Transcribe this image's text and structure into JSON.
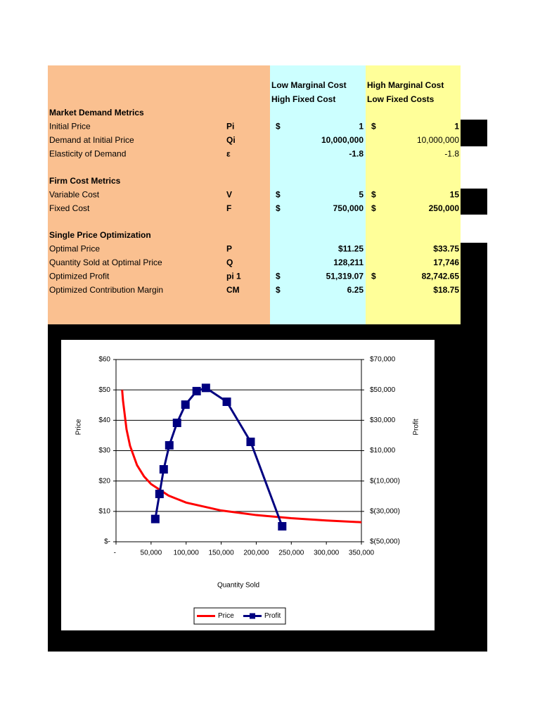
{
  "table": {
    "column_headers": [
      [
        "Low Marginal Cost",
        "High Fixed Cost"
      ],
      [
        "High Marginal Cost",
        "Low Fixed Costs"
      ]
    ],
    "sections": [
      {
        "title": "Market Demand Metrics",
        "rows": [
          {
            "label": "Initial Price",
            "symbol": "Pi",
            "low": {
              "currency": "$",
              "value": "1"
            },
            "high": {
              "currency": "$",
              "value": "1"
            }
          },
          {
            "label": "Demand at Initial Price",
            "symbol": "Qi",
            "low": {
              "value": "10,000,000"
            },
            "high": {
              "value": "10,000,000"
            }
          },
          {
            "label": "Elasticity of Demand",
            "symbol": "ε",
            "low": {
              "value": "-1.8"
            },
            "high": {
              "value": "-1.8"
            }
          }
        ]
      },
      {
        "title": "Firm Cost Metrics",
        "rows": [
          {
            "label": "Variable Cost",
            "symbol": "V",
            "low": {
              "currency": "$",
              "value": "5"
            },
            "high": {
              "currency": "$",
              "value": "15"
            }
          },
          {
            "label": "Fixed Cost",
            "symbol": "F",
            "low": {
              "currency": "$",
              "value": "750,000"
            },
            "high": {
              "currency": "$",
              "value": "250,000"
            }
          }
        ]
      },
      {
        "title": "Single Price Optimization",
        "rows": [
          {
            "label": "Optimal Price",
            "symbol": "P",
            "low": {
              "value": "$11.25"
            },
            "high": {
              "value": "$33.75"
            }
          },
          {
            "label": "Quantity Sold at Optimal Price",
            "symbol": "Q",
            "low": {
              "value": "128,211"
            },
            "high": {
              "value": "17,746"
            }
          },
          {
            "label": "Optimized Profit",
            "symbol": "pi 1",
            "low": {
              "currency": "$",
              "value": "51,319.07"
            },
            "high": {
              "currency": "$",
              "value": "82,742.65"
            }
          },
          {
            "label": "Optimized Contribution Margin",
            "symbol": "CM",
            "low": {
              "currency": "$",
              "value": "6.25"
            },
            "high": {
              "value": "$18.75"
            }
          }
        ]
      }
    ]
  },
  "chart_data": {
    "type": "line",
    "x_label": "Quantity Sold",
    "y_label": "Price",
    "y2_label": "Profit",
    "xlim": [
      0,
      350000
    ],
    "xticks": [
      {
        "value": 0,
        "label": "-"
      },
      {
        "value": 50000,
        "label": "50,000"
      },
      {
        "value": 100000,
        "label": "100,000"
      },
      {
        "value": 150000,
        "label": "150,000"
      },
      {
        "value": 200000,
        "label": "200,000"
      },
      {
        "value": 250000,
        "label": "250,000"
      },
      {
        "value": 300000,
        "label": "300,000"
      },
      {
        "value": 350000,
        "label": "350,000"
      }
    ],
    "ylim": [
      0,
      60
    ],
    "yticks": [
      {
        "value": 0,
        "label": "$-"
      },
      {
        "value": 10,
        "label": "$10"
      },
      {
        "value": 20,
        "label": "$20"
      },
      {
        "value": 30,
        "label": "$30"
      },
      {
        "value": 40,
        "label": "$40"
      },
      {
        "value": 50,
        "label": "$50"
      },
      {
        "value": 60,
        "label": "$60"
      }
    ],
    "y2lim": [
      -50000,
      70000
    ],
    "y2ticks": [
      {
        "value": -50000,
        "label": "$(50,000)"
      },
      {
        "value": -30000,
        "label": "$(30,000)"
      },
      {
        "value": -10000,
        "label": "$(10,000)"
      },
      {
        "value": 10000,
        "label": "$10,000"
      },
      {
        "value": 30000,
        "label": "$30,000"
      },
      {
        "value": 50000,
        "label": "$50,000"
      },
      {
        "value": 70000,
        "label": "$70,000"
      }
    ],
    "grid": true,
    "legend": "bottom",
    "series": [
      {
        "name": "Price",
        "color": "#ff0000",
        "marker": false,
        "x": [
          8700,
          10000,
          15000,
          20000,
          30000,
          40000,
          50000,
          75000,
          100000,
          150000,
          200000,
          250000,
          300000,
          350000
        ],
        "values": [
          50,
          46.4,
          37.0,
          31.6,
          25.2,
          21.5,
          19.0,
          15.2,
          12.9,
          10.3,
          8.79,
          7.76,
          7.02,
          6.44
        ]
      },
      {
        "name": "Profit",
        "color": "#000080",
        "marker": true,
        "axis": "y2",
        "x": [
          56000,
          62000,
          68000,
          76000,
          87000,
          99000,
          115000,
          128211,
          158000,
          192000,
          237000
        ],
        "values": [
          -35000,
          -18500,
          -2300,
          13500,
          28300,
          40300,
          49200,
          51319,
          42200,
          15800,
          -39800
        ]
      }
    ]
  }
}
